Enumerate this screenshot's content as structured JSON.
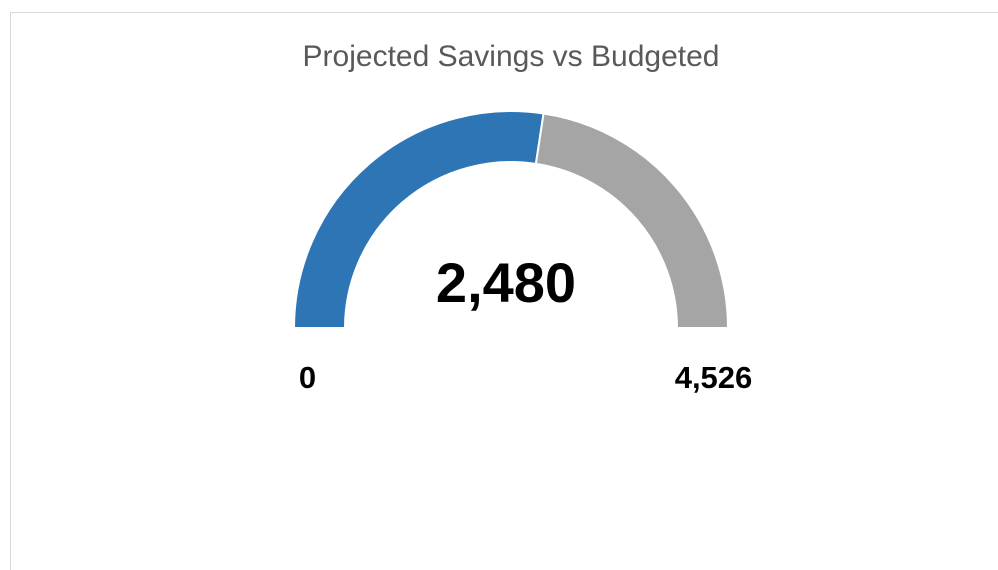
{
  "chart_data": {
    "type": "gauge",
    "title": "Projected Savings vs Budgeted",
    "values": [
      2480
    ],
    "value_labels": [
      "2,480"
    ],
    "range": [
      0,
      {
        "value": 4526,
        "label": "4,526"
      }
    ],
    "color": "#2e75b6",
    "remainder_color": "#a5a5a5"
  }
}
